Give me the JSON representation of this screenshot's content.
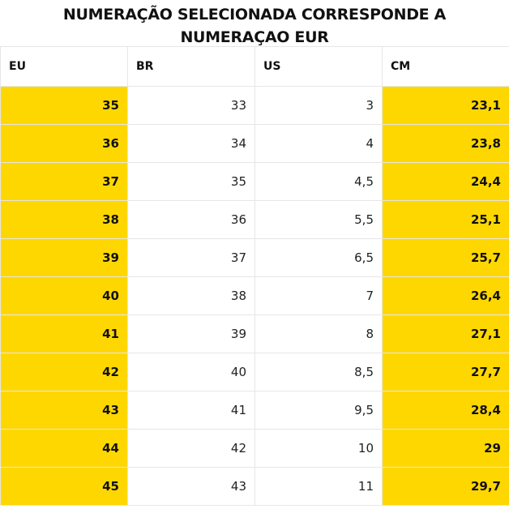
{
  "title": {
    "line1": "NUMERAÇÃO SELECIONADA CORRESPONDE A",
    "line2": "NUMERAÇAO EUR"
  },
  "colors": {
    "highlight": "#FFD700",
    "plain": "#FFFFFF"
  },
  "table": {
    "headers": [
      "EU",
      "BR",
      "US",
      "CM"
    ],
    "highlight_columns": [
      0,
      3
    ],
    "rows": [
      [
        "35",
        "33",
        "3",
        "23,1"
      ],
      [
        "36",
        "34",
        "4",
        "23,8"
      ],
      [
        "37",
        "35",
        "4,5",
        "24,4"
      ],
      [
        "38",
        "36",
        "5,5",
        "25,1"
      ],
      [
        "39",
        "37",
        "6,5",
        "25,7"
      ],
      [
        "40",
        "38",
        "7",
        "26,4"
      ],
      [
        "41",
        "39",
        "8",
        "27,1"
      ],
      [
        "42",
        "40",
        "8,5",
        "27,7"
      ],
      [
        "43",
        "41",
        "9,5",
        "28,4"
      ],
      [
        "44",
        "42",
        "10",
        "29"
      ],
      [
        "45",
        "43",
        "11",
        "29,7"
      ]
    ]
  }
}
